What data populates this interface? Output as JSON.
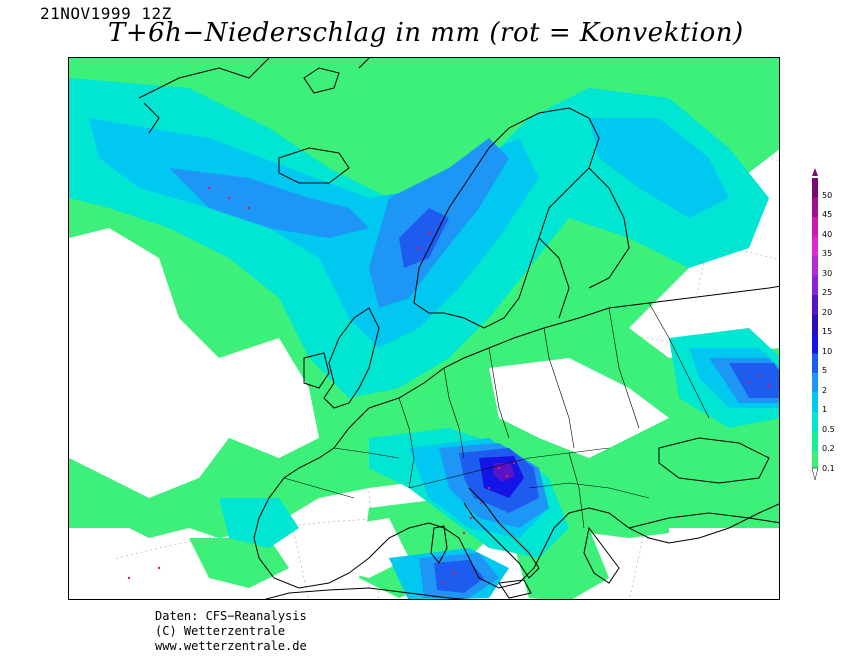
{
  "header": {
    "datestamp": "21NOV1999 12Z",
    "title": "T+6h−Niederschlag in mm (rot = Konvektion)"
  },
  "legend": {
    "levels": [
      "50",
      "45",
      "40",
      "35",
      "30",
      "25",
      "20",
      "15",
      "10",
      "5",
      "2",
      "1",
      "0.5",
      "0.2",
      "0.1"
    ],
    "colors": [
      "#7a0a6e",
      "#a0108c",
      "#c81ab4",
      "#e028d2",
      "#b42ad8",
      "#8a22d6",
      "#5a14c8",
      "#2a10b8",
      "#1414e6",
      "#1e5cf0",
      "#1e96f5",
      "#00c8f0",
      "#00e6d2",
      "#14f096",
      "#3cf07a"
    ]
  },
  "credits": {
    "line1": "Daten: CFS−Reanalysis",
    "line2": "(C) Wetterzentrale",
    "line3": "www.wetterzentrale.de"
  },
  "colors": {
    "light": "#3cf07a",
    "cyan": "#00e6d2",
    "sky": "#00c8f0",
    "blue": "#1e96f5",
    "deep": "#1e5cf0",
    "navy": "#1414e6",
    "purple": "#5a14c8",
    "convective": "#e02050"
  }
}
